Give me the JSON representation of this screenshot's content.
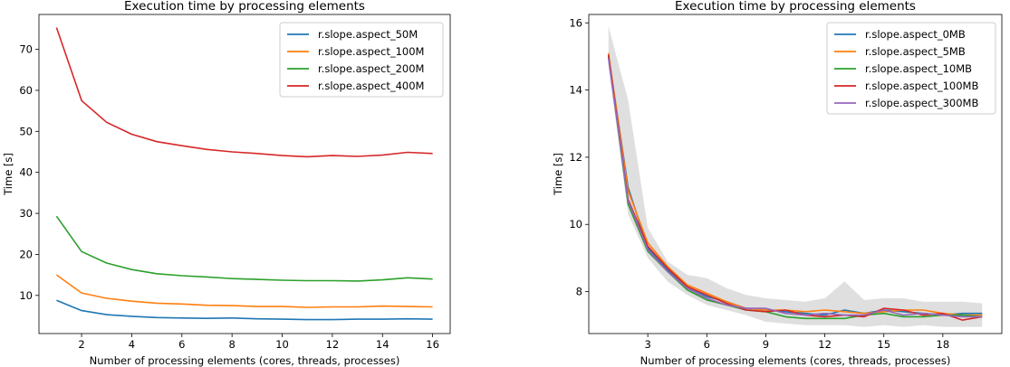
{
  "chart_data": [
    {
      "type": "line",
      "title": "Execution time by processing elements",
      "xlabel": "Number of processing elements (cores, threads, processes)",
      "ylabel": "Time [s]",
      "xlim": [
        0.3,
        16.7
      ],
      "ylim": [
        0.7,
        78.5
      ],
      "xticks": [
        2,
        4,
        6,
        8,
        10,
        12,
        14,
        16
      ],
      "yticks": [
        10,
        20,
        30,
        40,
        50,
        60,
        70
      ],
      "legend_position": "top-right",
      "x": [
        1,
        2,
        3,
        4,
        5,
        6,
        7,
        8,
        9,
        10,
        11,
        12,
        13,
        14,
        15,
        16
      ],
      "series": [
        {
          "name": "r.slope.aspect_50M",
          "color": "#1f77b4",
          "values": [
            8.8,
            6.3,
            5.3,
            4.9,
            4.6,
            4.5,
            4.4,
            4.5,
            4.3,
            4.2,
            4.1,
            4.1,
            4.2,
            4.2,
            4.3,
            4.2
          ]
        },
        {
          "name": "r.slope.aspect_100M",
          "color": "#ff7f0e",
          "values": [
            15.0,
            10.6,
            9.3,
            8.6,
            8.1,
            7.9,
            7.6,
            7.5,
            7.3,
            7.3,
            7.1,
            7.2,
            7.2,
            7.4,
            7.3,
            7.2
          ]
        },
        {
          "name": "r.slope.aspect_200M",
          "color": "#2ca02c",
          "values": [
            29.3,
            20.7,
            17.9,
            16.3,
            15.3,
            14.8,
            14.5,
            14.1,
            13.9,
            13.7,
            13.6,
            13.6,
            13.5,
            13.8,
            14.3,
            14.0
          ]
        },
        {
          "name": "r.slope.aspect_400M",
          "color": "#d62728",
          "values": [
            75.3,
            57.5,
            52.2,
            49.3,
            47.5,
            46.5,
            45.6,
            45.0,
            44.6,
            44.1,
            43.8,
            44.1,
            43.9,
            44.2,
            44.9,
            44.6
          ]
        }
      ]
    },
    {
      "type": "line",
      "title": "Execution time by processing elements",
      "xlabel": "Number of processing elements (cores, threads, processes)",
      "ylabel": "Time [s]",
      "xlim": [
        0.0,
        21.0
      ],
      "ylim": [
        6.75,
        16.25
      ],
      "xticks": [
        3,
        6,
        9,
        12,
        15,
        18
      ],
      "yticks": [
        8,
        10,
        12,
        14,
        16
      ],
      "legend_position": "top-right",
      "x": [
        1,
        2,
        3,
        4,
        5,
        6,
        7,
        8,
        9,
        10,
        11,
        12,
        13,
        14,
        15,
        16,
        17,
        18,
        19,
        20
      ],
      "band": {
        "color": "#b0b0b0",
        "upper": [
          15.9,
          13.7,
          9.9,
          8.9,
          8.5,
          8.4,
          8.1,
          7.9,
          7.8,
          7.75,
          7.7,
          7.8,
          8.3,
          7.75,
          7.8,
          7.8,
          7.7,
          7.7,
          7.7,
          7.65
        ],
        "lower": [
          14.7,
          10.3,
          9.0,
          8.3,
          7.9,
          7.6,
          7.45,
          7.3,
          7.1,
          7.05,
          7.0,
          7.0,
          7.0,
          6.95,
          7.0,
          6.95,
          7.0,
          6.95,
          6.95,
          6.95
        ]
      },
      "series": [
        {
          "name": "r.slope.aspect_0MB",
          "color": "#1f77b4",
          "values": [
            15.05,
            11.1,
            9.3,
            8.65,
            8.15,
            7.85,
            7.7,
            7.5,
            7.45,
            7.4,
            7.35,
            7.3,
            7.45,
            7.35,
            7.45,
            7.4,
            7.35,
            7.3,
            7.35,
            7.35
          ]
        },
        {
          "name": "r.slope.aspect_5MB",
          "color": "#ff7f0e",
          "values": [
            15.1,
            11.0,
            9.45,
            8.75,
            8.2,
            7.95,
            7.7,
            7.5,
            7.45,
            7.45,
            7.4,
            7.45,
            7.4,
            7.35,
            7.4,
            7.45,
            7.45,
            7.35,
            7.3,
            7.3
          ]
        },
        {
          "name": "r.slope.aspect_10MB",
          "color": "#2ca02c",
          "values": [
            15.0,
            10.6,
            9.2,
            8.6,
            8.05,
            7.75,
            7.6,
            7.45,
            7.4,
            7.25,
            7.2,
            7.2,
            7.2,
            7.3,
            7.35,
            7.25,
            7.25,
            7.3,
            7.3,
            7.25
          ]
        },
        {
          "name": "r.slope.aspect_100MB",
          "color": "#d62728",
          "values": [
            15.05,
            10.75,
            9.35,
            8.7,
            8.15,
            7.9,
            7.65,
            7.45,
            7.4,
            7.45,
            7.3,
            7.25,
            7.3,
            7.25,
            7.5,
            7.45,
            7.3,
            7.35,
            7.15,
            7.25
          ]
        },
        {
          "name": "r.slope.aspect_300MB",
          "color": "#9467bd",
          "values": [
            14.95,
            10.7,
            9.25,
            8.6,
            8.1,
            7.8,
            7.6,
            7.5,
            7.5,
            7.35,
            7.3,
            7.35,
            7.3,
            7.3,
            7.45,
            7.3,
            7.35,
            7.3,
            7.25,
            7.25
          ]
        }
      ]
    }
  ]
}
